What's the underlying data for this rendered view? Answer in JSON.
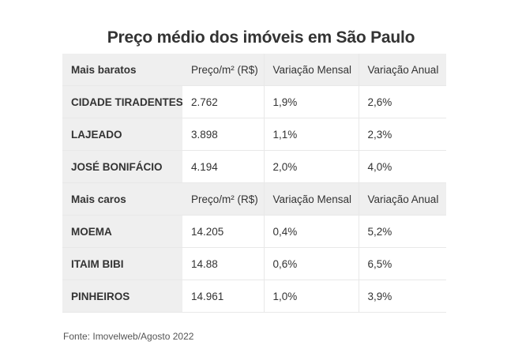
{
  "title": "Preço médio dos imóveis em São Paulo",
  "groups": [
    {
      "label": "Mais baratos",
      "headers": [
        "Preço/m² (R$)",
        "Variação Mensal",
        "Variação Anual"
      ],
      "rows": [
        {
          "name": "CIDADE TIRADENTES",
          "price": "2.762",
          "monthly": "1,9%",
          "annual": "2,6%"
        },
        {
          "name": "LAJEADO",
          "price": "3.898",
          "monthly": "1,1%",
          "annual": "2,3%"
        },
        {
          "name": "JOSÉ BONIFÁCIO",
          "price": "4.194",
          "monthly": "2,0%",
          "annual": "4,0%"
        }
      ]
    },
    {
      "label": "Mais caros",
      "headers": [
        "Preço/m² (R$)",
        "Variação Mensal",
        "Variação Anual"
      ],
      "rows": [
        {
          "name": "MOEMA",
          "price": "14.205",
          "monthly": "0,4%",
          "annual": "5,2%"
        },
        {
          "name": "ITAIM BIBI",
          "price": "14.88",
          "monthly": "0,6%",
          "annual": "6,5%"
        },
        {
          "name": "PINHEIROS",
          "price": "14.961",
          "monthly": "1,0%",
          "annual": "3,9%"
        }
      ]
    }
  ],
  "source": "Fonte: Imovelweb/Agosto 2022",
  "colors": {
    "header_background": "#efefef",
    "border": "#e8e8e8",
    "text": "#333333"
  }
}
